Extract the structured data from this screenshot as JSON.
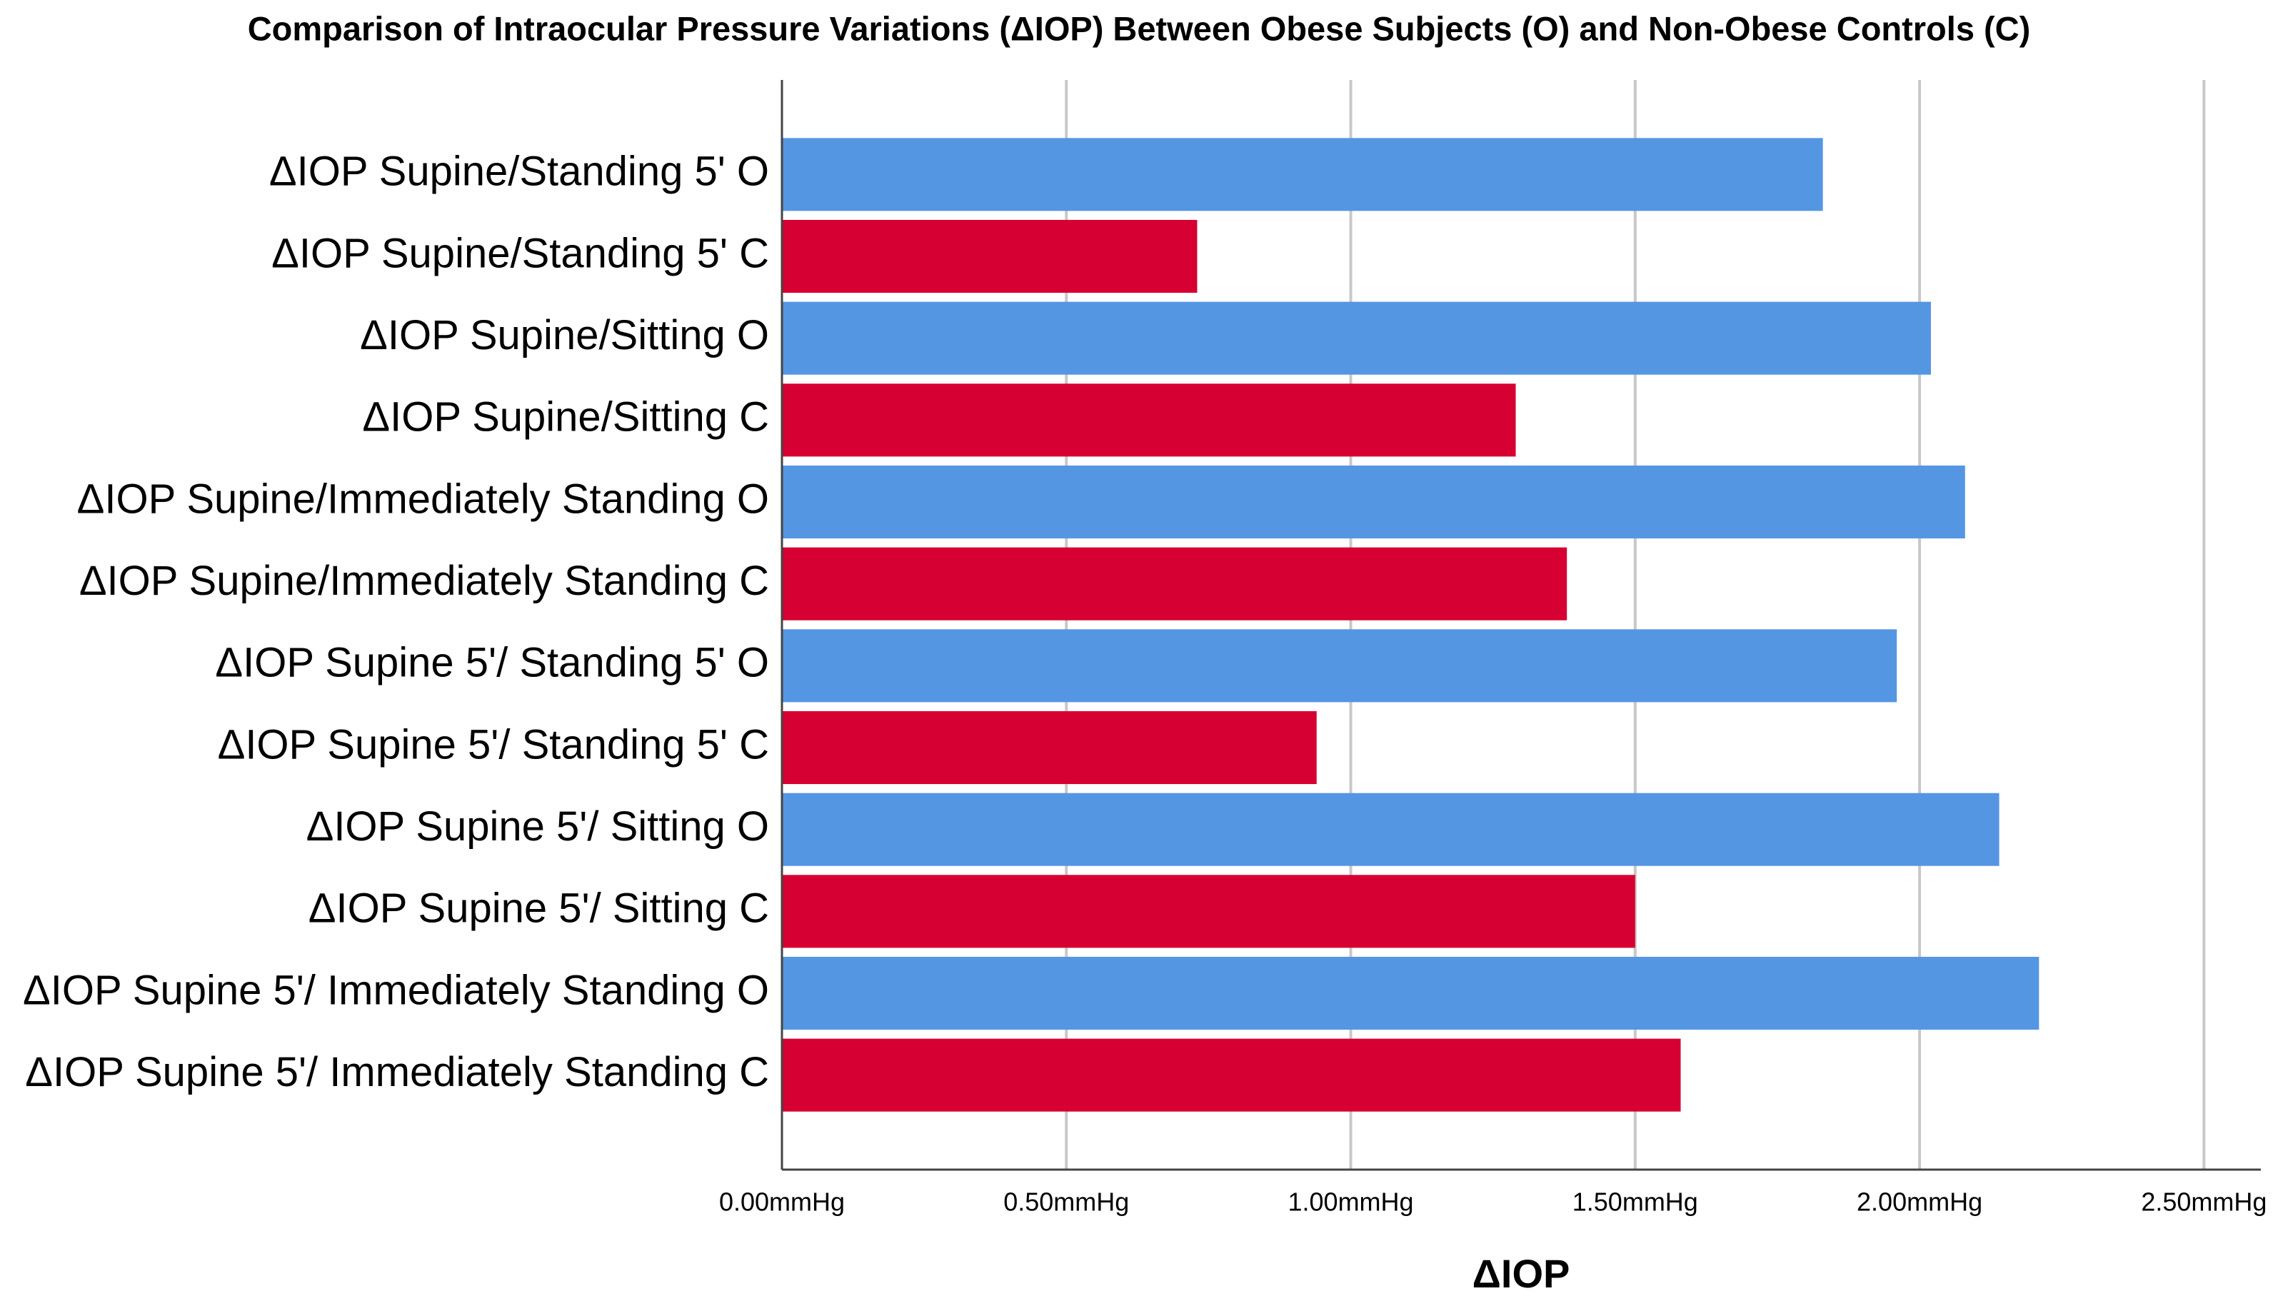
{
  "chart_data": {
    "type": "barh",
    "title": "Comparison of Intraocular Pressure Variations (ΔIOP) Between Obese Subjects (O) and Non-Obese Controls (C)",
    "x_label": "ΔIOP",
    "categories": [
      "ΔIOP Supine/Standing 5' O",
      "ΔIOP Supine/Standing 5' C",
      "ΔIOP Supine/Sitting O",
      "ΔIOP Supine/Sitting C",
      "ΔIOP Supine/Immediately Standing O",
      "ΔIOP Supine/Immediately Standing C",
      "ΔIOP Supine 5'/ Standing 5' O",
      "ΔIOP Supine 5'/ Standing 5' C",
      "ΔIOP Supine 5'/ Sitting O",
      "ΔIOP Supine 5'/ Sitting C",
      "ΔIOP Supine 5'/ Immediately Standing O",
      "ΔIOP Supine 5'/ Immediately Standing C"
    ],
    "values": [
      1.83,
      0.73,
      2.02,
      1.29,
      2.08,
      1.38,
      1.96,
      0.94,
      2.14,
      1.5,
      2.21,
      1.58
    ],
    "colors": [
      "#5596e3",
      "#d60032",
      "#5596e3",
      "#d60032",
      "#5596e3",
      "#d60032",
      "#5596e3",
      "#d60032",
      "#5596e3",
      "#d60032",
      "#5596e3",
      "#d60032"
    ],
    "xlim": [
      0,
      2.6
    ],
    "xticks": [
      {
        "value": 0,
        "label": "0.00mmHg"
      },
      {
        "value": 0.5,
        "label": "0.50mmHg"
      },
      {
        "value": 1,
        "label": "1.00mmHg"
      },
      {
        "value": 1.5,
        "label": "1.50mmHg"
      },
      {
        "value": 2,
        "label": "2.00mmHg"
      },
      {
        "value": 2.5,
        "label": "2.50mmHg"
      }
    ],
    "grid": true
  }
}
